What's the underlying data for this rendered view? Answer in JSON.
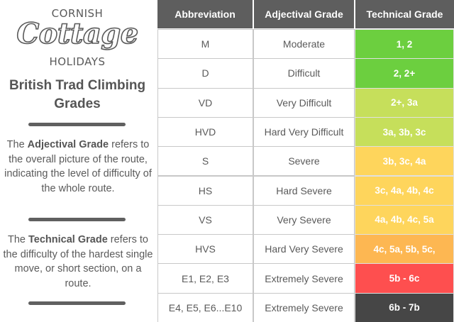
{
  "logo": {
    "line1": "CORNISH",
    "line2": "Cottage",
    "line3": "HOLIDAYS"
  },
  "sidebar": {
    "title_line1": "British Trad Climbing",
    "title_line2": "Grades",
    "para1": {
      "pre": "The ",
      "bold": "Adjectival Grade",
      "post": " refers to the overall picture of the route, indicating the level of difficulty of the whole route."
    },
    "para2": {
      "pre": "The ",
      "bold": "Technical Grade",
      "post": " refers to the difficulty of the hardest single move, or short section, on a route."
    }
  },
  "table": {
    "headers": [
      "Abbreviation",
      "Adjectival Grade",
      "Technical Grade"
    ],
    "rows": [
      {
        "abbr": "M",
        "adj": "Moderate",
        "tech": "1, 2",
        "color": "#6ccf3f"
      },
      {
        "abbr": "D",
        "adj": "Difficult",
        "tech": "2, 2+",
        "color": "#6ccf3f"
      },
      {
        "abbr": "VD",
        "adj": "Very Difficult",
        "tech": "2+, 3a",
        "color": "#c6df5b"
      },
      {
        "abbr": "HVD",
        "adj": "Hard Very Difficult",
        "tech": "3a, 3b, 3c",
        "color": "#c6df5b"
      },
      {
        "abbr": "S",
        "adj": "Severe",
        "tech": "3b, 3c, 4a",
        "color": "#fed55c"
      },
      {
        "abbr": "HS",
        "adj": "Hard Severe",
        "tech": "3c, 4a, 4b, 4c",
        "color": "#fed55c"
      },
      {
        "abbr": "VS",
        "adj": "Very Severe",
        "tech": "4a, 4b, 4c, 5a",
        "color": "#fed55c"
      },
      {
        "abbr": "HVS",
        "adj": "Hard Very Severe",
        "tech": "4c, 5a, 5b, 5c,",
        "color": "#fdb752"
      },
      {
        "abbr": "E1, E2, E3",
        "adj": "Extremely Severe",
        "tech": "5b - 6c",
        "color": "#fe4f4f"
      },
      {
        "abbr": "E4, E5, E6...E10",
        "adj": "Extremely Severe",
        "tech": "6b - 7b",
        "color": "#464646"
      }
    ]
  }
}
